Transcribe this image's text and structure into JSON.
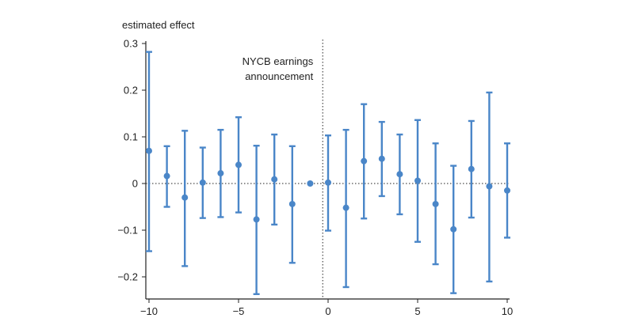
{
  "chart_data": {
    "type": "scatter",
    "ylabel": "estimated effect",
    "xlabel": "",
    "xlim": [
      -10,
      10
    ],
    "ylim": [
      -0.25,
      0.3
    ],
    "xticks": [
      {
        "value": -10,
        "label": "−10"
      },
      {
        "value": -5,
        "label": "−5"
      },
      {
        "value": 0,
        "label": "0"
      },
      {
        "value": 5,
        "label": "5"
      },
      {
        "value": 10,
        "label": "10"
      }
    ],
    "yticks": [
      {
        "value": 0.3,
        "label": "0.3"
      },
      {
        "value": 0.2,
        "label": "0.2"
      },
      {
        "value": 0.1,
        "label": "0.1"
      },
      {
        "value": 0,
        "label": "0"
      },
      {
        "value": -0.1,
        "label": "−0.1"
      },
      {
        "value": -0.2,
        "label": "−0.2"
      }
    ],
    "event_line": {
      "x": -0.3,
      "label_lines": [
        "NYCB earnings",
        "announcement"
      ]
    },
    "zero_line": true,
    "series": [
      {
        "color": "#4a86c8",
        "points": [
          {
            "x": -10,
            "y": 0.07,
            "lo": -0.145,
            "hi": 0.282
          },
          {
            "x": -9,
            "y": 0.016,
            "lo": -0.05,
            "hi": 0.08
          },
          {
            "x": -8,
            "y": -0.03,
            "lo": -0.177,
            "hi": 0.113
          },
          {
            "x": -7,
            "y": 0.002,
            "lo": -0.074,
            "hi": 0.077
          },
          {
            "x": -6,
            "y": 0.022,
            "lo": -0.072,
            "hi": 0.115
          },
          {
            "x": -5,
            "y": 0.04,
            "lo": -0.062,
            "hi": 0.142
          },
          {
            "x": -4,
            "y": -0.077,
            "lo": -0.237,
            "hi": 0.081
          },
          {
            "x": -3,
            "y": 0.009,
            "lo": -0.088,
            "hi": 0.105
          },
          {
            "x": -2,
            "y": -0.044,
            "lo": -0.17,
            "hi": 0.08
          },
          {
            "x": -1,
            "y": 0.0,
            "lo": null,
            "hi": null
          },
          {
            "x": 0,
            "y": 0.002,
            "lo": -0.101,
            "hi": 0.103
          },
          {
            "x": 1,
            "y": -0.052,
            "lo": -0.222,
            "hi": 0.115
          },
          {
            "x": 2,
            "y": 0.048,
            "lo": -0.075,
            "hi": 0.17
          },
          {
            "x": 3,
            "y": 0.053,
            "lo": -0.027,
            "hi": 0.132
          },
          {
            "x": 4,
            "y": 0.02,
            "lo": -0.066,
            "hi": 0.105
          },
          {
            "x": 5,
            "y": 0.006,
            "lo": -0.125,
            "hi": 0.136
          },
          {
            "x": 6,
            "y": -0.044,
            "lo": -0.173,
            "hi": 0.086
          },
          {
            "x": 7,
            "y": -0.098,
            "lo": -0.235,
            "hi": 0.038
          },
          {
            "x": 8,
            "y": 0.031,
            "lo": -0.073,
            "hi": 0.134
          },
          {
            "x": 9,
            "y": -0.006,
            "lo": -0.21,
            "hi": 0.195
          },
          {
            "x": 10,
            "y": -0.015,
            "lo": -0.116,
            "hi": 0.086
          }
        ]
      }
    ]
  }
}
